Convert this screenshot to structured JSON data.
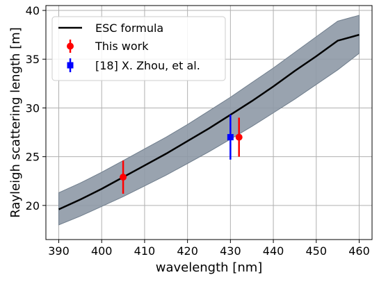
{
  "chart_data": {
    "type": "line",
    "xlabel": "wavelength [nm]",
    "ylabel": "Rayleigh scattering length [m]",
    "xlim": [
      387,
      463
    ],
    "ylim": [
      16.5,
      40.5
    ],
    "x_ticks": [
      390,
      400,
      410,
      420,
      430,
      440,
      450,
      460
    ],
    "y_ticks": [
      20,
      25,
      30,
      35,
      40
    ],
    "grid": true,
    "legend_position": "top-left",
    "curve": {
      "name": "ESC formula",
      "color": "#000000",
      "x": [
        390,
        395,
        400,
        405,
        410,
        415,
        420,
        425,
        430,
        435,
        440,
        445,
        450,
        455,
        460
      ],
      "y": [
        19.6,
        20.6,
        21.7,
        22.9,
        24.1,
        25.3,
        26.6,
        27.9,
        29.3,
        30.7,
        32.2,
        33.8,
        35.3,
        36.9,
        37.5
      ],
      "band_lower": [
        18.0,
        18.9,
        19.9,
        20.9,
        22.0,
        23.1,
        24.3,
        25.5,
        26.8,
        28.1,
        29.5,
        30.9,
        32.4,
        33.9,
        35.6
      ],
      "band_upper": [
        21.3,
        22.3,
        23.4,
        24.6,
        25.8,
        27.0,
        28.3,
        29.7,
        31.1,
        32.6,
        34.1,
        35.7,
        37.3,
        38.9,
        39.5
      ],
      "band_color": "#8e99a6"
    },
    "series": [
      {
        "name": "This work",
        "color": "#ff0000",
        "marker": "circle",
        "points": [
          {
            "x": 405,
            "y": 22.9,
            "err": 1.7
          },
          {
            "x": 432,
            "y": 27.0,
            "err": 2.0
          }
        ]
      },
      {
        "name": "[18] X. Zhou, et al.",
        "color": "#0000ff",
        "marker": "square",
        "points": [
          {
            "x": 430,
            "y": 27.0,
            "err": 2.3
          }
        ]
      }
    ]
  }
}
